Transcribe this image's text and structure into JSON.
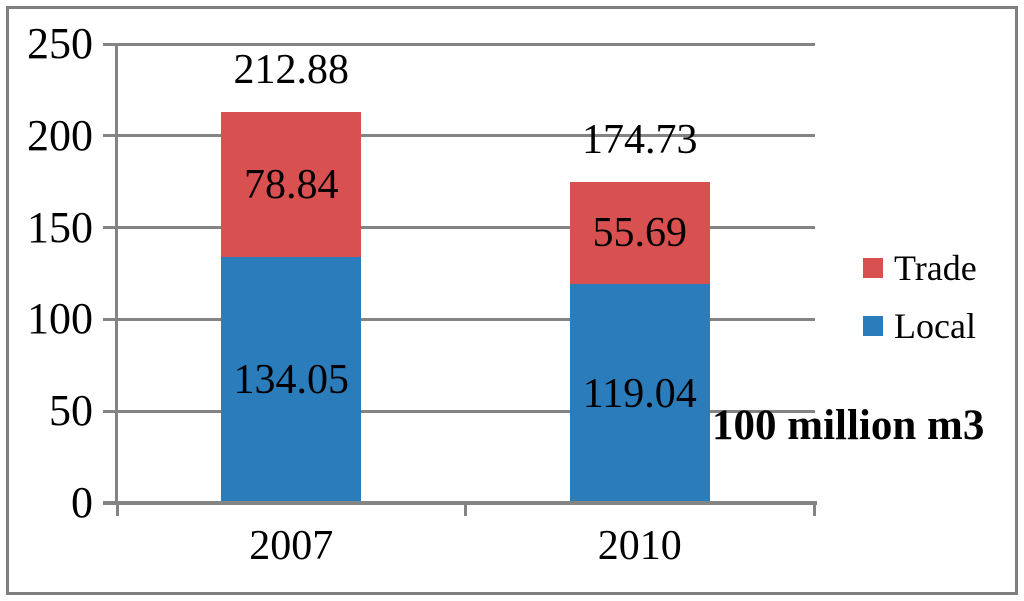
{
  "chart_data": {
    "type": "bar",
    "stacked": true,
    "title": "",
    "xlabel": "",
    "ylabel": "",
    "unit_label": "100 million m3",
    "categories": [
      "2007",
      "2010"
    ],
    "series": [
      {
        "name": "Local",
        "color": "#2B7CBA",
        "values": [
          134.05,
          119.04
        ]
      },
      {
        "name": "Trade",
        "color": "#D95050",
        "values": [
          78.84,
          55.69
        ]
      }
    ],
    "totals": [
      212.88,
      174.73
    ],
    "yticks": [
      0,
      50,
      100,
      150,
      200,
      250
    ],
    "ylim": [
      0,
      250
    ],
    "grid": true,
    "legend": {
      "position": "right",
      "entries": [
        "Trade",
        "Local"
      ]
    },
    "colors": {
      "axis": "#848484",
      "gridline": "#848484",
      "frame_border": "#7F7F7F",
      "text": "#000000",
      "background": "#FFFFFF"
    }
  }
}
